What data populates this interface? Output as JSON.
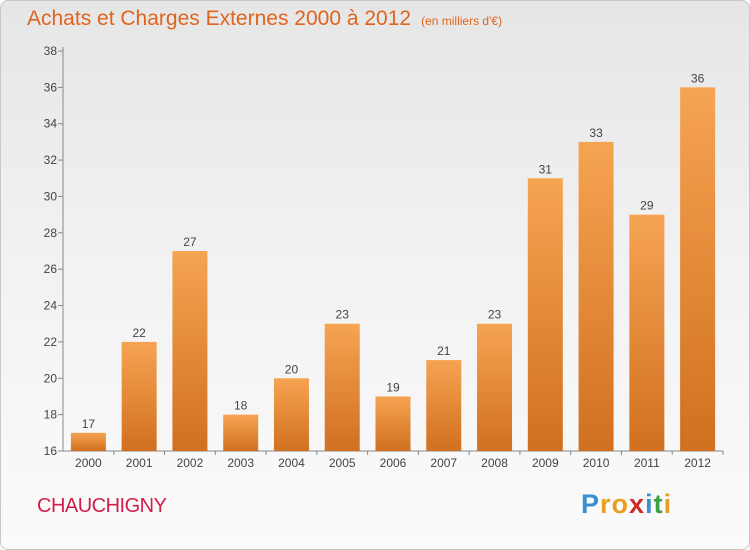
{
  "title": "Achats et Charges Externes 2000 à 2012",
  "unit_note": "(en milliers d'€)",
  "commune": "CHAUCHIGNY",
  "logo": {
    "letters": [
      "P",
      "r",
      "o",
      "x",
      "i",
      "t",
      "i"
    ],
    "colors": [
      "#3a8fd0",
      "#e8a020",
      "#e8a020",
      "#d02828",
      "#3a8fd0",
      "#3aa040",
      "#e8a020"
    ]
  },
  "colors": {
    "title": "#e0641e",
    "commune": "#d0204a",
    "bar_top": "#f6a452",
    "bar_bottom": "#d07020"
  },
  "chart_data": {
    "type": "bar",
    "title": "Achats et Charges Externes 2000 à 2012",
    "subtitle": "(en milliers d'€)",
    "categories": [
      "2000",
      "2001",
      "2002",
      "2003",
      "2004",
      "2005",
      "2006",
      "2007",
      "2008",
      "2009",
      "2010",
      "2011",
      "2012"
    ],
    "values": [
      17,
      22,
      27,
      18,
      20,
      23,
      19,
      21,
      23,
      31,
      33,
      29,
      36
    ],
    "ylim": [
      16,
      38
    ],
    "yticks": [
      16,
      18,
      20,
      22,
      24,
      26,
      28,
      30,
      32,
      34,
      36,
      38
    ],
    "grid": false,
    "data_labels": true,
    "xlabel": "",
    "ylabel": ""
  }
}
